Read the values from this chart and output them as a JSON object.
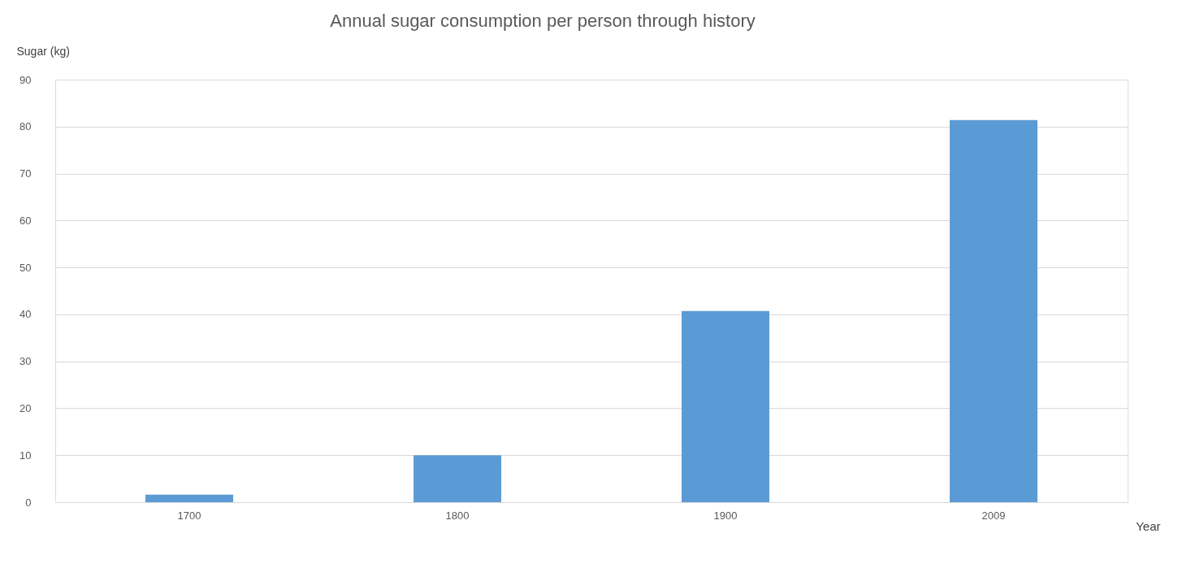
{
  "chart_data": {
    "type": "bar",
    "title": "Annual sugar consumption per person through history",
    "xlabel": "Year",
    "ylabel": "Sugar (kg)",
    "categories": [
      "1700",
      "1800",
      "1900",
      "2009"
    ],
    "values": [
      1.6,
      10,
      40.7,
      81.4
    ],
    "color": "#5b9bd5",
    "ylim": [
      0,
      90
    ],
    "yticks": [
      0,
      10,
      20,
      30,
      40,
      50,
      60,
      70,
      80,
      90
    ],
    "grid": "y"
  }
}
